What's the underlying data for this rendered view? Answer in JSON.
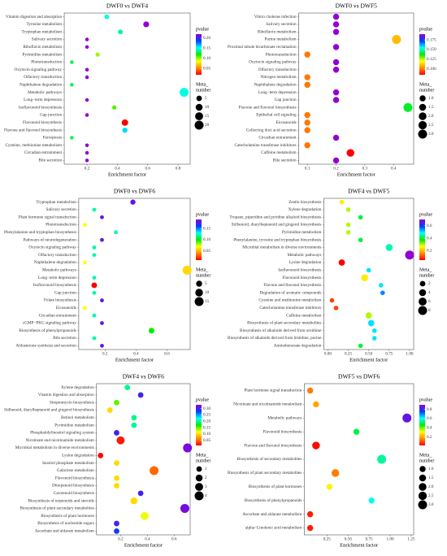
{
  "chart_data": [
    {
      "type": "scatter",
      "title": "DWF0 vs DWF4",
      "xlabel": "Enrichment factor",
      "categories": [
        "Vitamin digestion and absorption",
        "Tyrosine metabolism",
        "Tryptophan metabolism",
        "Salivary secretion",
        "Riboflavin metabolism",
        "Pyrimidine metabolism",
        "Phototransduction",
        "Oxytocin signaling pathway",
        "Olfactory transduction",
        "Naphthalene degradation",
        "Metabolic pathways",
        "Long−term depression",
        "Isoflavonoid biosynthesis",
        "Gap junction",
        "Flavonoid biosynthesis",
        "Flavone and flavonol biosynthesis",
        "Ferroptosis",
        "Cysteine, methionine metabolism",
        "Circadian entrainment",
        "Bile secretion"
      ],
      "values": [
        0.33,
        0.59,
        0.42,
        0.2,
        0.2,
        0.27,
        0.1,
        0.2,
        0.2,
        0.1,
        0.84,
        0.2,
        0.38,
        0.2,
        0.45,
        0.45,
        0.1,
        0.2,
        0.2,
        0.2
      ],
      "sizes": [
        3,
        6,
        3,
        1,
        1,
        2,
        1,
        1,
        1,
        1,
        20,
        1,
        2,
        1,
        8,
        4,
        1,
        1,
        1,
        1
      ],
      "pvalues": [
        0.15,
        0.22,
        0.14,
        0.22,
        0.22,
        0.1,
        0.13,
        0.22,
        0.22,
        0.13,
        0.15,
        0.22,
        0.11,
        0.22,
        0.02,
        0.16,
        0.13,
        0.22,
        0.22,
        0.22
      ],
      "xlim": [
        0.05,
        0.88
      ],
      "xticks": [
        0.2,
        0.4,
        0.6,
        0.8
      ],
      "color_title": "pvalue",
      "clim": [
        0.02,
        0.22
      ],
      "cticks": [
        0.05,
        {
          "value": 0.1,
          "label": "0.10"
        },
        0.15,
        {
          "value": 0.2,
          "label": "0.20"
        }
      ],
      "size_title": [
        "Meta_",
        "number"
      ],
      "size_ticks": [
        5,
        10,
        15,
        20
      ],
      "colormap": [
        "#ff0000",
        "#ff8c00",
        "#ffff00",
        "#00ee00",
        "#00ffff",
        "#0040ff",
        "#9400d3"
      ]
    },
    {
      "type": "scatter",
      "title": "DWF0 vs DWF5",
      "xlabel": "Enrichment factor",
      "categories": [
        "Vibrio cholerae infection",
        "Salivary secretion",
        "Riboflavin metabolism",
        "Purine metabolism",
        "Proximal tubule bicarbonate reclamation",
        "Phototransduction",
        "Oxytocin signaling pathway",
        "Olfactory transduction",
        "Nitrogen metabolism",
        "Naphthalene degradation",
        "Long−term depression",
        "Gap junction",
        "Flavone and flavonol biosynthesis",
        "Epithelial cell signaling",
        "Eicosanoids",
        "Collecting duct acid secretion",
        "Circadian entrainment",
        "Catecholamine transferase inhibitors",
        "Caffeine metabolism",
        "Bile secretion"
      ],
      "values": [
        0.2,
        0.2,
        0.2,
        0.41,
        0.2,
        0.1,
        0.2,
        0.2,
        0.1,
        0.1,
        0.2,
        0.2,
        0.45,
        0.1,
        0.1,
        0.1,
        0.2,
        0.1,
        0.25,
        0.2
      ],
      "sizes": [
        1,
        1,
        1,
        3,
        1,
        1,
        1,
        1,
        1,
        1,
        1,
        1,
        3,
        1,
        1,
        1,
        1,
        1,
        2,
        1
      ],
      "pvalues": [
        0.19,
        0.19,
        0.19,
        0.11,
        0.19,
        0.1,
        0.19,
        0.19,
        0.1,
        0.1,
        0.19,
        0.19,
        0.14,
        0.1,
        0.1,
        0.1,
        0.19,
        0.1,
        0.085,
        0.19
      ],
      "xlim": [
        0.07,
        0.47
      ],
      "xticks": [
        0.1,
        0.2,
        0.3,
        0.4
      ],
      "color_title": "pvalue",
      "clim": [
        0.085,
        0.19
      ],
      "cticks": [
        {
          "value": 0.1,
          "label": "0.100"
        },
        {
          "value": 0.125,
          "label": "0.125"
        },
        {
          "value": 0.15,
          "label": "0.150"
        },
        {
          "value": 0.175,
          "label": "0.175"
        }
      ],
      "size_title": [
        "Meta_",
        "number"
      ],
      "size_ticks": [
        {
          "value": 1,
          "label": "1.0"
        },
        1.5,
        {
          "value": 2,
          "label": "2.0"
        },
        2.5,
        {
          "value": 3,
          "label": "3.0"
        }
      ],
      "colormap": [
        "#ff0000",
        "#ff8c00",
        "#ffff00",
        "#00ee00",
        "#00ffff",
        "#0040ff",
        "#9400d3"
      ]
    },
    {
      "type": "scatter",
      "title": "DWF0 vs DWF6",
      "xlabel": "Enrichment factor",
      "categories": [
        "Tryptophan metabolism",
        "Salivary secretion",
        "Plant hormone signal transduction",
        "Phototransduction",
        "Phenylalanine and tryptophan biosynthesis",
        "Pathways of neurodegeneration",
        "Oxytocin signaling pathway",
        "Olfactory transduction",
        "Naphthalene degradation",
        "Metabolic pathways",
        "Long−term depression",
        "Isoflavonoid biosynthesis",
        "Gap junction",
        "Folate biosynthesis",
        "Eicosanoids",
        "Circadian entrainment",
        "cGMP−PKG signaling pathway",
        "Biosynthesis of phenylpropanoids",
        "Bile secretion",
        "Aldosterone synthesis and secretion"
      ],
      "values": [
        0.38,
        0.13,
        0.18,
        0.07,
        0.27,
        0.18,
        0.13,
        0.13,
        0.07,
        0.73,
        0.13,
        0.13,
        0.13,
        0.18,
        0.07,
        0.13,
        0.18,
        0.5,
        0.13,
        0.18
      ],
      "sizes": [
        3,
        1,
        1,
        1,
        1,
        1,
        1,
        1,
        1,
        15,
        1,
        4,
        1,
        1,
        1,
        1,
        1,
        4,
        1,
        1
      ],
      "pvalues": [
        0.18,
        0.12,
        0.18,
        0.07,
        0.12,
        0.18,
        0.12,
        0.12,
        0.07,
        0.06,
        0.12,
        0.01,
        0.12,
        0.18,
        0.07,
        0.12,
        0.18,
        0.1,
        0.12,
        0.18
      ],
      "xlim": [
        0.03,
        0.75
      ],
      "xticks": [
        0.2,
        0.4,
        0.6
      ],
      "color_title": "pvalue",
      "clim": [
        0.01,
        0.19
      ],
      "cticks": [
        0.05,
        {
          "value": 0.1,
          "label": "0.10"
        },
        0.15
      ],
      "size_title": [
        "Meta_",
        "number"
      ],
      "size_ticks": [
        5,
        10,
        15
      ],
      "colormap": [
        "#ff0000",
        "#ff8c00",
        "#ffff00",
        "#00ee00",
        "#00ffff",
        "#0040ff",
        "#9400d3"
      ]
    },
    {
      "type": "scatter",
      "title": "DWF4 vs DWF5",
      "xlabel": "Enrichment factor",
      "categories": [
        "Zeatin biosynthesis",
        "Xylene degradation",
        "Tropane, piperidine and pyridine alkaloid biosynthesis",
        "Stilbenoid, diarylheptanoid and gingerol biosynthesis",
        "Pyrimidine metabolism",
        "Phenylalanine, tyrosine and tryptophan biosynthesis",
        "Microbial metabolism in diverse environments",
        "Metabolic pathways",
        "Lysine degradation",
        "Isoflavonoid biosynthesis",
        "Flavonoid biosynthesis",
        "Flavone and flavonol biosynthesis",
        "Degradation of aromatic compounds",
        "Cysteine and methionine metabolism",
        "Catecholamine transferase inhibitors",
        "Caffeine metabolism",
        "Biosynthesis of plant secondary metabolites",
        "Biosynthesis of alkaloids derived from ornithine",
        "Biosynthesis of alkaloids derived from histidine, purine",
        "Aminobenzoate degradation"
      ],
      "values": [
        0.17,
        0.25,
        0.4,
        0.25,
        0.25,
        0.4,
        0.75,
        1.0,
        0.17,
        0.5,
        0.45,
        0.65,
        0.67,
        0.05,
        0.1,
        0.5,
        0.53,
        0.57,
        0.57,
        0.4
      ],
      "sizes": [
        1,
        1,
        1,
        1,
        1,
        1,
        4,
        8,
        3,
        1,
        4,
        1,
        1,
        1,
        1,
        3,
        3,
        1,
        1,
        1
      ],
      "pvalues": [
        0.25,
        0.3,
        0.4,
        0.3,
        0.3,
        0.4,
        0.45,
        0.7,
        0.05,
        0.5,
        0.25,
        0.5,
        0.55,
        0.1,
        0.1,
        0.3,
        0.5,
        0.5,
        0.5,
        0.4
      ],
      "xlim": [
        -0.05,
        1.05
      ],
      "xticks": [
        {
          "value": 0,
          "label": "0.00"
        },
        0.25,
        {
          "value": 0.5,
          "label": "0.50"
        },
        0.75,
        {
          "value": 1,
          "label": "1.00"
        }
      ],
      "color_title": "pvalue",
      "clim": [
        0.05,
        0.7
      ],
      "cticks": [
        0.2,
        0.4,
        0.6
      ],
      "size_title": [
        "Meta_",
        "number"
      ],
      "size_ticks": [
        2,
        4,
        6,
        8
      ],
      "colormap": [
        "#ff0000",
        "#ff8c00",
        "#ffff00",
        "#00ee00",
        "#00ffff",
        "#0040ff",
        "#9400d3"
      ]
    },
    {
      "type": "scatter",
      "title": "DWF4 vs DWF6",
      "xlabel": "Enrichment factor",
      "categories": [
        "Xylene degradation",
        "Vitamin digestion and absorption",
        "Streptomycin biosynthesis",
        "Stilbenoid, diarylheptanoid and gingerol biosynthesis",
        "Retinol metabolism",
        "Pyrimidine metabolism",
        "Phosphatidylinositol signaling system",
        "Nicotinate and nicotinamide metabolism",
        "Microbial metabolism in diverse environments",
        "Lysine degradation",
        "Inositol phosphate metabolism",
        "Galactose metabolism",
        "Flavonoid biosynthesis",
        "Diterpenoid biosynthesis",
        "Carotenoid biosynthesis",
        "Biosynthesis of terpenoids and steroids",
        "Biosynthesis of plant secondary metabolites",
        "Biosynthesis of plant hormones",
        "Biosynthesis of nucleotide sugars",
        "Ascorbate and aldarate metabolism"
      ],
      "values": [
        0.25,
        0.35,
        0.17,
        0.12,
        0.3,
        0.3,
        0.17,
        0.2,
        0.7,
        0.05,
        0.17,
        0.45,
        0.17,
        0.17,
        0.35,
        0.3,
        0.68,
        0.38,
        0.17,
        0.17
      ],
      "sizes": [
        1,
        1,
        1,
        1,
        1,
        1,
        1,
        3,
        4,
        1,
        1,
        4,
        1,
        1,
        1,
        2,
        4,
        3,
        1,
        1
      ],
      "pvalues": [
        0.2,
        0.3,
        0.15,
        0.1,
        0.2,
        0.2,
        0.3,
        0.02,
        0.32,
        0.01,
        0.1,
        0.05,
        0.1,
        0.1,
        0.3,
        0.1,
        0.32,
        0.12,
        0.3,
        0.28
      ],
      "xlim": [
        0.02,
        0.72
      ],
      "xticks": [
        0.2,
        0.4,
        0.6
      ],
      "color_title": "pvalue",
      "clim": [
        0.01,
        0.33
      ],
      "cticks": [
        0.05,
        {
          "value": 0.1,
          "label": "0.10"
        },
        0.15,
        {
          "value": 0.2,
          "label": "0.20"
        },
        0.25,
        {
          "value": 0.3,
          "label": "0.30"
        }
      ],
      "size_title": [
        "Meta_",
        "number"
      ],
      "size_ticks": [
        1,
        2,
        3,
        4
      ],
      "colormap": [
        "#ff0000",
        "#ff8c00",
        "#ffff00",
        "#00ee00",
        "#00ffff",
        "#0040ff",
        "#9400d3"
      ]
    },
    {
      "type": "scatter",
      "title": "DWF5 vs DWF6",
      "xlabel": "Enrichment factor",
      "categories": [
        "Plant hormone signal transduction",
        "Nicotinate and nicotinamide metabolism",
        "Metabolic pathways",
        "Flavonoid biosynthesis",
        "Flavone and flavonol biosynthesis",
        "Biosynthesis of secondary metabolites",
        "Biosynthesis of plant secondary metabolites",
        "Biosynthesis of plant hormones",
        "Biosynthesis of phenylpropanoids",
        "Ascorbate and aldarate metabolism",
        "alpha−Linolenic acid metabolism"
      ],
      "values": [
        0.05,
        0.12,
        1.2,
        0.6,
        0.12,
        0.9,
        0.35,
        0.28,
        0.78,
        0.05,
        0.05
      ],
      "sizes": [
        1,
        1,
        3,
        1,
        2,
        3,
        2,
        1,
        1,
        1,
        1
      ],
      "pvalues": [
        0.15,
        0.2,
        0.85,
        0.5,
        0.03,
        0.55,
        0.15,
        0.3,
        0.6,
        0.05,
        0.05
      ],
      "xlim": [
        -0.02,
        1.28
      ],
      "xticks": [
        0.25,
        {
          "value": 0.5,
          "label": "0.50"
        },
        0.75,
        {
          "value": 1,
          "label": "1.00"
        },
        1.25
      ],
      "color_title": "pvalue",
      "clim": [
        0.02,
        0.9
      ],
      "cticks": [
        0.2,
        0.4,
        0.6,
        0.8
      ],
      "size_title": [
        "Meta_",
        "number"
      ],
      "size_ticks": [
        {
          "value": 1,
          "label": "1.0"
        },
        1.5,
        {
          "value": 2,
          "label": "2.0"
        },
        2.5,
        {
          "value": 3,
          "label": "3.0"
        }
      ],
      "colormap": [
        "#ff0000",
        "#ff8c00",
        "#ffff00",
        "#00ee00",
        "#00ffff",
        "#0040ff",
        "#9400d3"
      ]
    }
  ]
}
